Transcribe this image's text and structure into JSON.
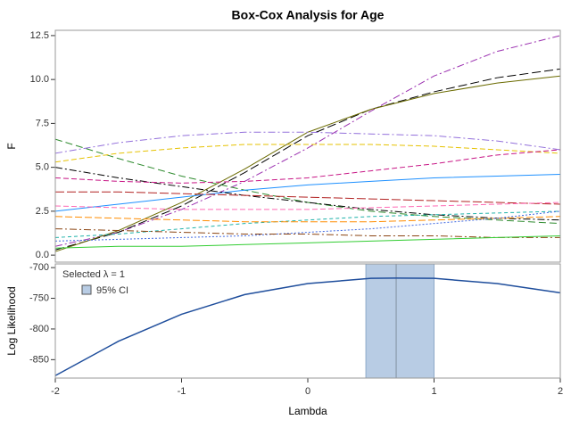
{
  "chart_data": [
    {
      "type": "line",
      "title": "Box-Cox Analysis for Age",
      "ylabel": "F",
      "x": [
        -2,
        -1.5,
        -1,
        -0.5,
        0,
        0.5,
        1,
        1.5,
        2
      ],
      "xlim": [
        -2,
        2
      ],
      "xticks": [
        -2,
        -1,
        0,
        1,
        2
      ],
      "ylim": [
        -0.4,
        12.8
      ],
      "yticks": [
        {
          "value": 0,
          "label": "0.0"
        },
        {
          "value": 2.5,
          "label": "2.5"
        },
        {
          "value": 5,
          "label": "5.0"
        },
        {
          "value": 7.5,
          "label": "7.5"
        },
        {
          "value": 10,
          "label": "10.0"
        },
        {
          "value": 12.5,
          "label": "12.5"
        }
      ],
      "series": [
        {
          "color": "#9b30b0",
          "dash": "8 3 2 3",
          "values": [
            0.5,
            1.3,
            2.6,
            4.2,
            6.1,
            8.2,
            10.2,
            11.6,
            12.5
          ]
        },
        {
          "color": "#000000",
          "dash": "10 4",
          "values": [
            0.3,
            1.3,
            2.8,
            4.7,
            6.8,
            8.3,
            9.3,
            10.1,
            10.6
          ]
        },
        {
          "color": "#6b6b00",
          "dash": "",
          "values": [
            0.2,
            1.4,
            3.0,
            4.9,
            7.0,
            8.3,
            9.2,
            9.8,
            10.2
          ]
        },
        {
          "color": "#2e8b2e",
          "dash": "8 4",
          "values": [
            6.6,
            5.5,
            4.5,
            3.7,
            3.0,
            2.5,
            2.2,
            2.0,
            1.8
          ]
        },
        {
          "color": "#9370db",
          "dash": "8 3 2 3",
          "values": [
            5.8,
            6.4,
            6.8,
            7.0,
            7.0,
            6.9,
            6.8,
            6.5,
            6.0
          ]
        },
        {
          "color": "#e6c200",
          "dash": "6 3",
          "values": [
            5.3,
            5.8,
            6.1,
            6.3,
            6.3,
            6.3,
            6.2,
            6.0,
            5.8
          ]
        },
        {
          "color": "#1e90ff",
          "dash": "",
          "values": [
            2.5,
            2.9,
            3.3,
            3.7,
            4.0,
            4.2,
            4.4,
            4.5,
            4.6
          ]
        },
        {
          "color": "#000000",
          "dash": "8 3 2 3",
          "values": [
            5.0,
            4.4,
            3.9,
            3.4,
            3.0,
            2.6,
            2.3,
            2.1,
            2.0
          ]
        },
        {
          "color": "#b22222",
          "dash": "10 3",
          "values": [
            3.6,
            3.6,
            3.5,
            3.4,
            3.3,
            3.2,
            3.1,
            3.0,
            2.9
          ]
        },
        {
          "color": "#c71585",
          "dash": "6 3",
          "values": [
            4.4,
            4.2,
            4.1,
            4.2,
            4.4,
            4.8,
            5.2,
            5.7,
            6.0
          ]
        },
        {
          "color": "#20b2aa",
          "dash": "4 3",
          "values": [
            1.0,
            1.2,
            1.5,
            1.8,
            2.0,
            2.2,
            2.3,
            2.4,
            2.5
          ]
        },
        {
          "color": "#ff8c00",
          "dash": "8 3",
          "values": [
            2.2,
            2.1,
            2.0,
            1.9,
            1.9,
            1.9,
            2.0,
            2.1,
            2.2
          ]
        },
        {
          "color": "#4169e1",
          "dash": "2 2",
          "values": [
            0.8,
            0.9,
            1.0,
            1.1,
            1.3,
            1.5,
            1.8,
            2.1,
            2.5
          ]
        },
        {
          "color": "#8b4513",
          "dash": "8 3 2 3",
          "values": [
            1.5,
            1.4,
            1.3,
            1.2,
            1.2,
            1.1,
            1.1,
            1.0,
            1.0
          ]
        },
        {
          "color": "#32cd32",
          "dash": "",
          "values": [
            0.4,
            0.5,
            0.5,
            0.6,
            0.7,
            0.8,
            0.9,
            1.0,
            1.1
          ]
        },
        {
          "color": "#ff69b4",
          "dash": "6 3",
          "values": [
            2.8,
            2.7,
            2.6,
            2.6,
            2.6,
            2.7,
            2.8,
            2.9,
            3.0
          ]
        }
      ]
    },
    {
      "type": "line",
      "ylabel": "Log Likelihood",
      "xlabel": "Lambda",
      "x": [
        -2,
        -1.5,
        -1,
        -0.5,
        0,
        0.5,
        0.7,
        1,
        1.5,
        2
      ],
      "xlim": [
        -2,
        2
      ],
      "xticks": [
        -2,
        -1,
        0,
        1,
        2
      ],
      "ylim": [
        -880,
        -694
      ],
      "yticks": [
        -700,
        -750,
        -800,
        -850
      ],
      "ci": [
        0.46,
        1.0
      ],
      "optimal": 0.7,
      "annotation": "Selected λ = 1",
      "ci_label": "95% CI",
      "ci_color": "#b8cce4",
      "series": [
        {
          "color": "#1f4e9c",
          "values": [
            -876,
            -820,
            -776,
            -744,
            -726,
            -717.5,
            -717,
            -717.5,
            -726,
            -741
          ]
        }
      ]
    }
  ]
}
